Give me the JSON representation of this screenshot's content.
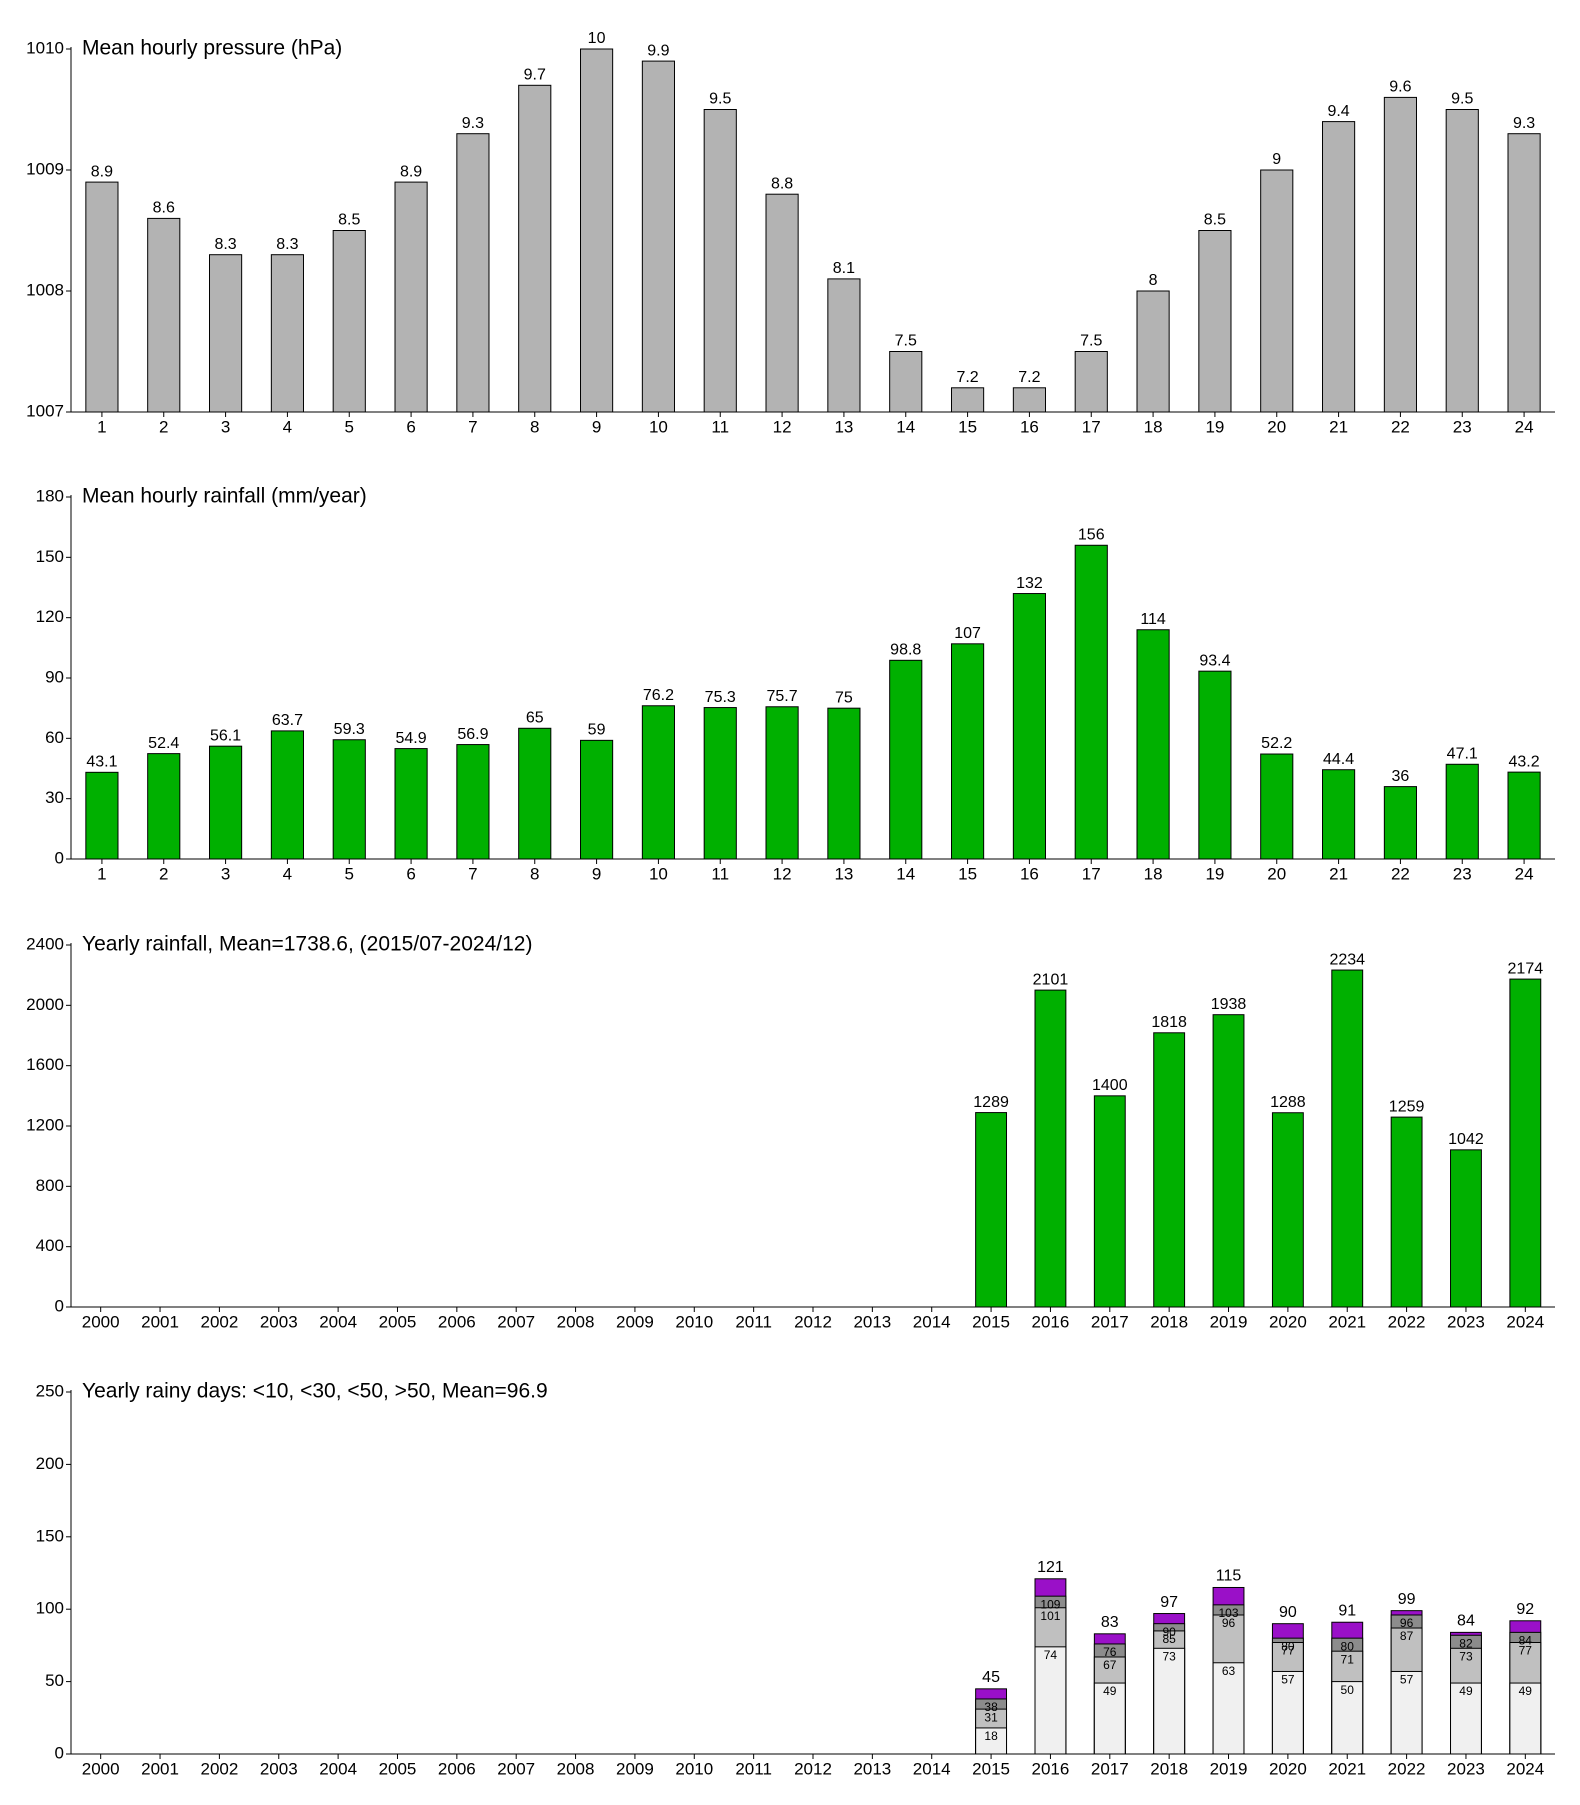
{
  "chart_data": [
    {
      "type": "bar",
      "title": "Mean hourly pressure (hPa)",
      "categories": [
        "1",
        "2",
        "3",
        "4",
        "5",
        "6",
        "7",
        "8",
        "9",
        "10",
        "11",
        "12",
        "13",
        "14",
        "15",
        "16",
        "17",
        "18",
        "19",
        "20",
        "21",
        "22",
        "23",
        "24"
      ],
      "values": [
        1008.9,
        1008.6,
        1008.3,
        1008.3,
        1008.5,
        1008.9,
        1009.3,
        1009.7,
        1010,
        1009.9,
        1009.5,
        1008.8,
        1008.1,
        1007.5,
        1007.2,
        1007.2,
        1007.5,
        1008,
        1008.5,
        1009,
        1009.4,
        1009.6,
        1009.5,
        1009.3
      ],
      "value_labels": [
        "8.9",
        "8.6",
        "8.3",
        "8.3",
        "8.5",
        "8.9",
        "9.3",
        "9.7",
        "10",
        "9.9",
        "9.5",
        "8.8",
        "8.1",
        "7.5",
        "7.2",
        "7.2",
        "7.5",
        "8",
        "8.5",
        "9",
        "9.4",
        "9.6",
        "9.5",
        "9.3"
      ],
      "color": "#b3b3b3",
      "ylim": [
        1007,
        1010
      ],
      "yticks": [
        1007,
        1008,
        1009,
        1010
      ]
    },
    {
      "type": "bar",
      "title": "Mean hourly rainfall (mm/year)",
      "categories": [
        "1",
        "2",
        "3",
        "4",
        "5",
        "6",
        "7",
        "8",
        "9",
        "10",
        "11",
        "12",
        "13",
        "14",
        "15",
        "16",
        "17",
        "18",
        "19",
        "20",
        "21",
        "22",
        "23",
        "24"
      ],
      "values": [
        43.1,
        52.4,
        56.1,
        63.7,
        59.3,
        54.9,
        56.9,
        65,
        59,
        76.2,
        75.3,
        75.7,
        75,
        98.8,
        107,
        132,
        156,
        114,
        93.4,
        52.2,
        44.4,
        36,
        47.1,
        43.2
      ],
      "color": "#00b000",
      "ylim": [
        0,
        180
      ],
      "yticks": [
        0,
        30,
        60,
        90,
        120,
        150,
        180
      ]
    },
    {
      "type": "bar",
      "title": "Yearly rainfall, Mean=1738.6, (2015/07-2024/12)",
      "categories": [
        "2000",
        "2001",
        "2002",
        "2003",
        "2004",
        "2005",
        "2006",
        "2007",
        "2008",
        "2009",
        "2010",
        "2011",
        "2012",
        "2013",
        "2014",
        "2015",
        "2016",
        "2017",
        "2018",
        "2019",
        "2020",
        "2021",
        "2022",
        "2023",
        "2024"
      ],
      "values": [
        null,
        null,
        null,
        null,
        null,
        null,
        null,
        null,
        null,
        null,
        null,
        null,
        null,
        null,
        null,
        1289,
        2101,
        1400,
        1818,
        1938,
        1288,
        2234,
        1259,
        1042,
        2174
      ],
      "color": "#00b000",
      "ylim": [
        0,
        2400
      ],
      "yticks": [
        0,
        400,
        800,
        1200,
        1600,
        2000,
        2400
      ]
    },
    {
      "type": "overlay",
      "title": "Yearly rainy days: <10, <30, <50, >50, Mean=96.9",
      "categories": [
        "2000",
        "2001",
        "2002",
        "2003",
        "2004",
        "2005",
        "2006",
        "2007",
        "2008",
        "2009",
        "2010",
        "2011",
        "2012",
        "2013",
        "2014",
        "2015",
        "2016",
        "2017",
        "2018",
        "2019",
        "2020",
        "2021",
        "2022",
        "2023",
        "2024"
      ],
      "series": [
        {
          "color": "#f0f0f0",
          "values": [
            null,
            null,
            null,
            null,
            null,
            null,
            null,
            null,
            null,
            null,
            null,
            null,
            null,
            null,
            null,
            18,
            74,
            49,
            73,
            63,
            57,
            50,
            57,
            49,
            49
          ]
        },
        {
          "color": "#c0c0c0",
          "values": [
            null,
            null,
            null,
            null,
            null,
            null,
            null,
            null,
            null,
            null,
            null,
            null,
            null,
            null,
            null,
            31,
            101,
            67,
            85,
            96,
            77,
            71,
            87,
            73,
            77
          ]
        },
        {
          "color": "#8c8c8c",
          "values": [
            null,
            null,
            null,
            null,
            null,
            null,
            null,
            null,
            null,
            null,
            null,
            null,
            null,
            null,
            null,
            38,
            109,
            76,
            90,
            103,
            80,
            80,
            96,
            82,
            84
          ]
        },
        {
          "color": "#9a10c8",
          "values": [
            null,
            null,
            null,
            null,
            null,
            null,
            null,
            null,
            null,
            null,
            null,
            null,
            null,
            null,
            null,
            45,
            121,
            83,
            97,
            115,
            90,
            91,
            99,
            84,
            92
          ]
        }
      ],
      "ylim": [
        0,
        250
      ],
      "yticks": [
        0,
        50,
        100,
        150,
        200,
        250
      ]
    }
  ]
}
